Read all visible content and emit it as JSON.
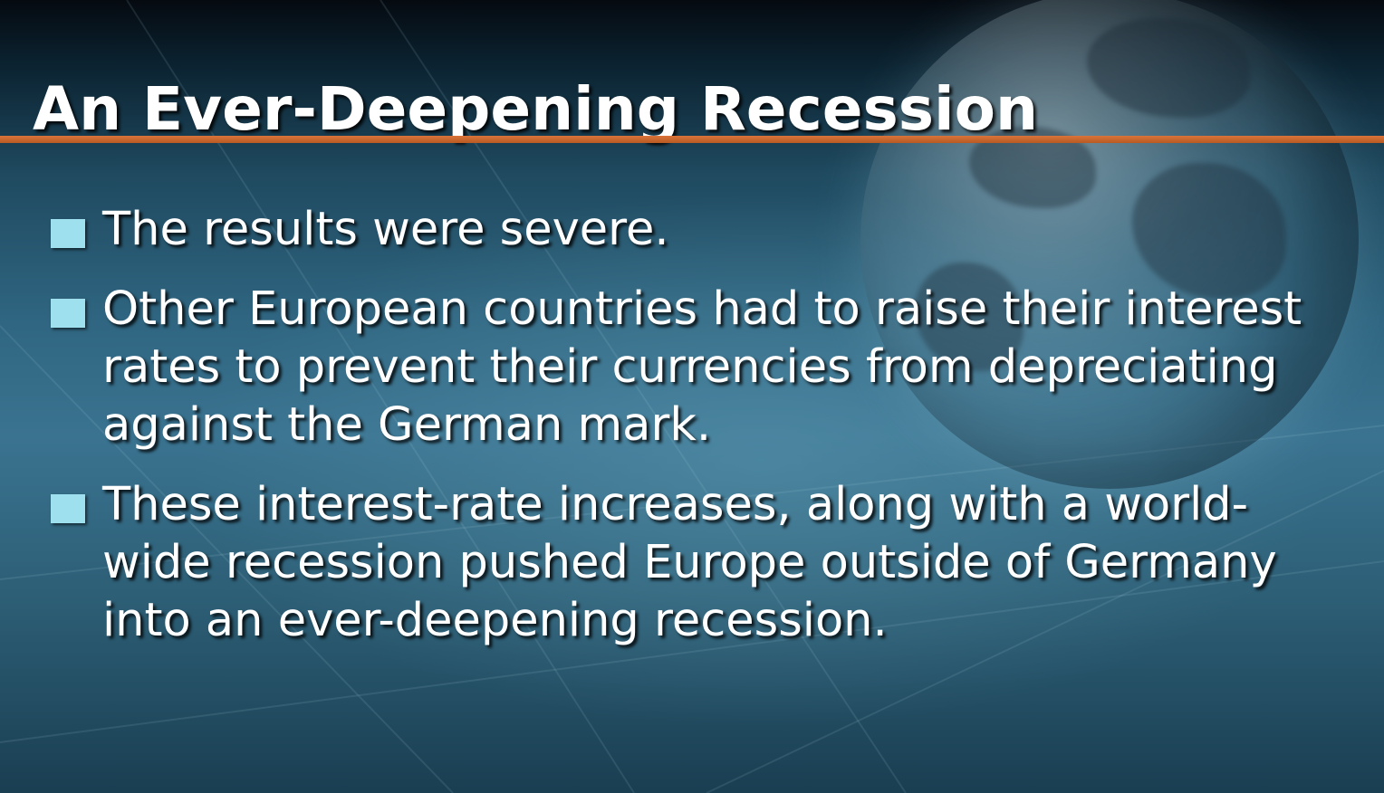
{
  "slide": {
    "title": "An Ever-Deepening Recession",
    "bullets": [
      {
        "text": "The results were severe."
      },
      {
        "text": "Other European countries had to raise their interest rates to prevent their currencies from depreciating against the German mark."
      },
      {
        "text": "These interest-rate increases, along with a world-wide recession pushed Europe outside of Germany into an ever-deepening recession."
      }
    ]
  },
  "colors": {
    "title_rule": "#d9743a",
    "bullet_marker": "#9fe0ef",
    "text": "#ffffff",
    "background": "#2f6580"
  },
  "decor": {
    "background_image": "globe-icon"
  }
}
